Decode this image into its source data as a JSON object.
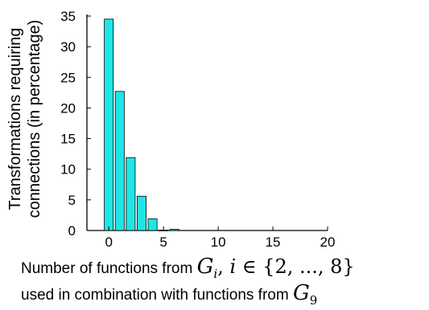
{
  "chart_data": {
    "type": "bar",
    "x": [
      0,
      1,
      2,
      3,
      4,
      5,
      6
    ],
    "values": [
      34.5,
      22.7,
      11.9,
      5.6,
      1.9,
      0.05,
      0.2
    ],
    "xlim": [
      -2,
      20
    ],
    "ylim": [
      0,
      35
    ],
    "x_ticks": [
      0,
      5,
      10,
      15,
      20
    ],
    "y_ticks": [
      0,
      5,
      10,
      15,
      20,
      25,
      30,
      35
    ],
    "bar_color": "#1ee6e6",
    "bar_edge_color": "#000000",
    "ylabel_lines": [
      "Transformations  requiring",
      "connections (in percentage)"
    ],
    "xlabel_line1_text": "Number of functions from ",
    "xlabel_line1_math": "{2, ..., 8}",
    "xlabel_line2_text": "used in combination with functions from ",
    "grid": false,
    "legend": "none"
  }
}
